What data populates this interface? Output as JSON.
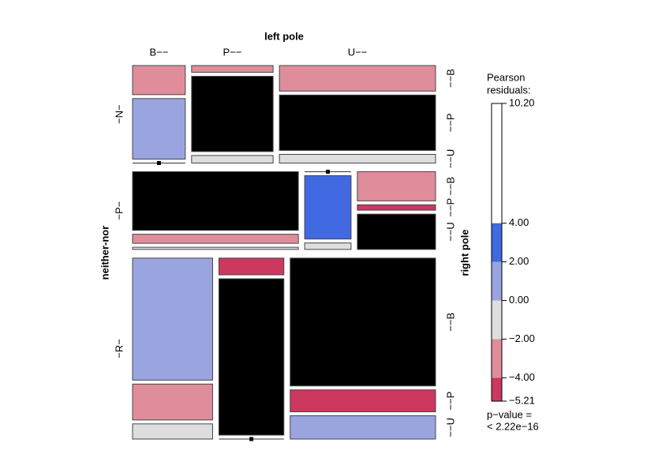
{
  "chart_data": {
    "type": "mosaic",
    "x_label": "left pole",
    "y_label": "neither-nor",
    "z_label": "right pole",
    "x_levels": [
      "B−−",
      "P−−",
      "U−−"
    ],
    "y_levels": [
      "−N−",
      "−P−",
      "−R−"
    ],
    "z_levels": [
      "−−B",
      "−−P",
      "−−U"
    ],
    "counts": [
      [
        [
          25,
          52,
          0
        ],
        [
          9,
          100,
          10
        ],
        [
          65,
          141,
          22
        ]
      ],
      [
        [
          162,
          25,
          6
        ],
        [
          0,
          49,
          5
        ],
        [
          38,
          7,
          46
        ]
      ],
      [
        [
          153,
          45,
          19
        ],
        [
          17,
          159,
          0
        ],
        [
          291,
          50,
          53
        ]
      ]
    ],
    "residuals": [
      [
        [
          -3,
          0.5,
          -1
        ],
        [
          -3,
          8,
          -1
        ],
        [
          -3.5,
          7,
          -1
        ]
      ],
      [
        [
          9,
          -3,
          -1
        ],
        [
          -1.5,
          3,
          -0.5
        ],
        [
          -2.5,
          -4.5,
          6
        ]
      ],
      [
        [
          1,
          -2.5,
          -0.5
        ],
        [
          -4.5,
          7,
          -1.5
        ],
        [
          5,
          -5,
          0.5
        ]
      ]
    ],
    "legend": {
      "title": [
        "Pearson",
        "residuals:"
      ],
      "ylim": [
        -5.21,
        10.2
      ],
      "yticks": [
        {
          "value": -5.21,
          "label": "−5.21"
        },
        {
          "value": -4,
          "label": "−4.00"
        },
        {
          "value": -2,
          "label": "−2.00"
        },
        {
          "value": 0,
          "label": "0.00"
        },
        {
          "value": 2,
          "label": "2.00"
        },
        {
          "value": 4,
          "label": "4.00"
        },
        {
          "value": 10.2,
          "label": "10.20"
        }
      ],
      "colors": [
        "#cc3860",
        "#e08d9b",
        "#dedede",
        "#9aa5e0",
        "#4169e1"
      ]
    },
    "p_value": [
      "p−value =",
      "< 2.22e−16"
    ]
  }
}
